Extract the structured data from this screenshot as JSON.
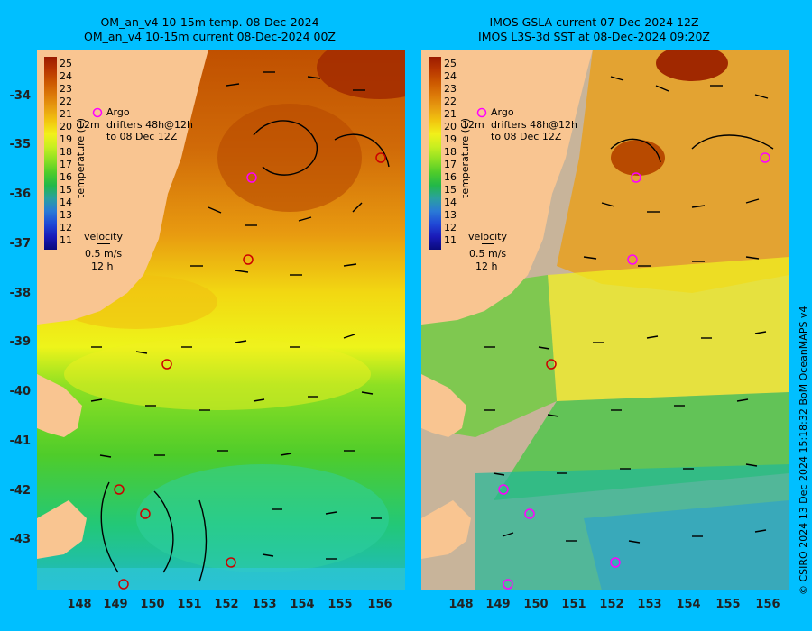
{
  "left_panel": {
    "title_line1": "OM_an_v4  10-15m temp. 08-Dec-2024",
    "title_line2": "OM_an_v4  10-15m current 08-Dec-2024 00Z"
  },
  "right_panel": {
    "title_line1": "IMOS GSLA current 07-Dec-2024 12Z",
    "title_line2": "IMOS L3S-3d SST at 08-Dec-2024 09:20Z"
  },
  "lat_ticks": [
    "-34",
    "-35",
    "-36",
    "-37",
    "-38",
    "-39",
    "-40",
    "-41",
    "-42",
    "-43"
  ],
  "lon_ticks": [
    "148",
    "149",
    "150",
    "151",
    "152",
    "153",
    "154",
    "155",
    "156"
  ],
  "colorbar": {
    "title": "temperature (C)",
    "labels": [
      "25",
      "24",
      "23",
      "22",
      "21",
      "20",
      "19",
      "18",
      "17",
      "16",
      "15",
      "14",
      "13",
      "12",
      "11"
    ],
    "colors": [
      "#9a1a00",
      "#b83600",
      "#cc5800",
      "#dc7a08",
      "#e89e10",
      "#f2c60f",
      "#f2f01a",
      "#c8ef20",
      "#8ee023",
      "#4fcc2a",
      "#22b848",
      "#2aa0a0",
      "#2a7ad6",
      "#2048d6",
      "#1a1ab8",
      "#0a0a7c"
    ]
  },
  "legend": {
    "argo": "Argo",
    "drifters_prefix": "12m",
    "drifters": "drifters 48h@12h",
    "drifters_date": "to 08 Dec 12Z",
    "velocity_label": "velocity",
    "velocity_scale": "0.5 m/s",
    "velocity_time": "12 h"
  },
  "credit": "© CSIRO 2024   13 Dec 2024 15:18:32 BoM OceanMAPS v4",
  "colors": {
    "background": "#00bfff",
    "land": "#f9c591",
    "no_data": "#c8b49a",
    "argo_marker": "#ff00ff",
    "drifter_marker": "#cc0000"
  }
}
